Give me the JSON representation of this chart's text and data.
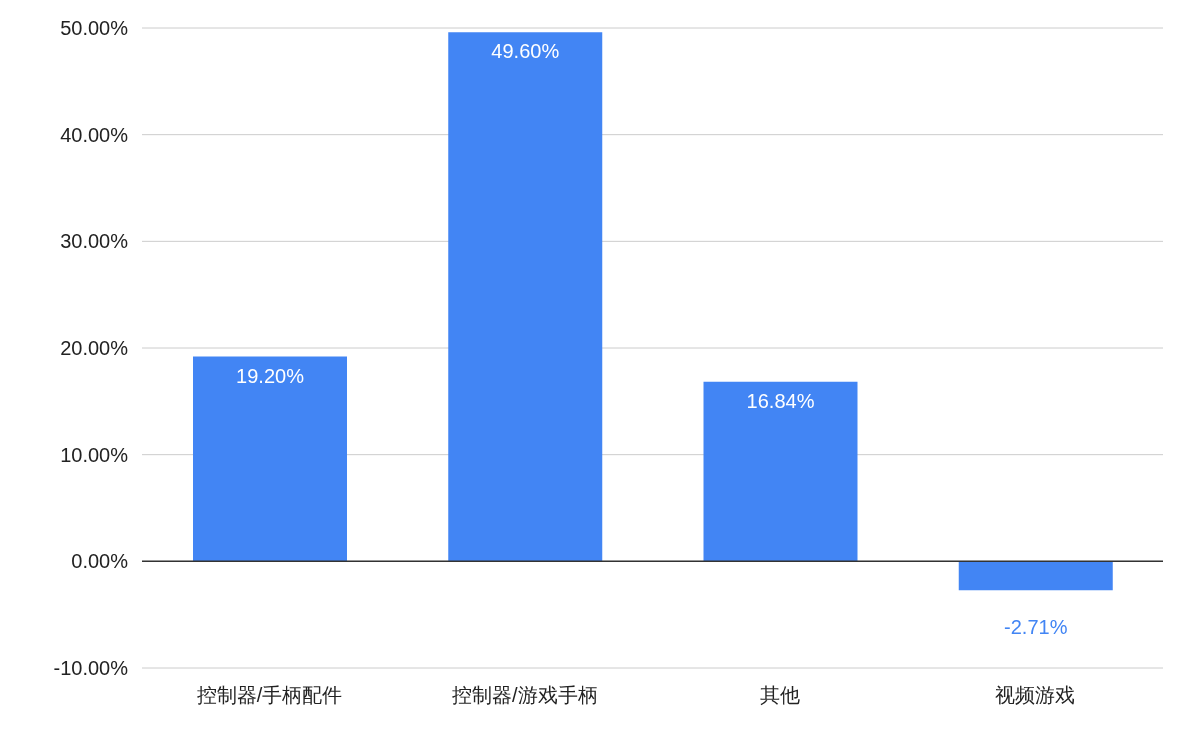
{
  "chart_data": {
    "type": "bar",
    "categories": [
      "控制器/手柄配件",
      "控制器/游戏手柄",
      "其他",
      "视频游戏"
    ],
    "values": [
      19.2,
      49.6,
      16.84,
      -2.71
    ],
    "value_labels": [
      "19.20%",
      "49.60%",
      "16.84%",
      "-2.71%"
    ],
    "color": "#4285f4",
    "ylim": [
      -10,
      50
    ],
    "yticks": [
      {
        "value": -10,
        "label": "-10.00%"
      },
      {
        "value": 0,
        "label": "0.00%"
      },
      {
        "value": 10,
        "label": "10.00%"
      },
      {
        "value": 20,
        "label": "20.00%"
      },
      {
        "value": 30,
        "label": "30.00%"
      },
      {
        "value": 40,
        "label": "40.00%"
      },
      {
        "value": 50,
        "label": "50.00%"
      }
    ],
    "grid": "y",
    "legend": false
  }
}
